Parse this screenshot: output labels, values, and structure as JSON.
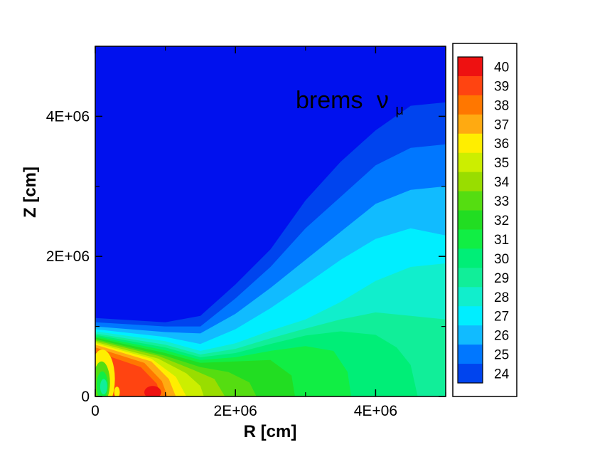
{
  "chart_data": {
    "type": "heatmap",
    "title": "",
    "xlabel": "R [cm]",
    "ylabel": "Z [cm]",
    "xlim": [
      0,
      5000000
    ],
    "ylim": [
      0,
      5000000
    ],
    "x_ticks": [
      {
        "value": 0,
        "label": "0"
      },
      {
        "value": 2000000,
        "label": "2E+06"
      },
      {
        "value": 4000000,
        "label": "4E+06"
      }
    ],
    "y_ticks": [
      {
        "value": 0,
        "label": "0"
      },
      {
        "value": 2000000,
        "label": "2E+06"
      },
      {
        "value": 4000000,
        "label": "4E+06"
      }
    ],
    "annotation": {
      "text": "brems",
      "symbol": "ν",
      "subscript": "μ"
    },
    "legend_position": "right",
    "color_levels": [
      {
        "level": 40,
        "color": "#ee1111"
      },
      {
        "level": 39,
        "color": "#ff4411"
      },
      {
        "level": 38,
        "color": "#ff7700"
      },
      {
        "level": 37,
        "color": "#ffaa11"
      },
      {
        "level": 36,
        "color": "#ffee00"
      },
      {
        "level": 35,
        "color": "#ccee00"
      },
      {
        "level": 34,
        "color": "#99dd00"
      },
      {
        "level": 33,
        "color": "#55dd11"
      },
      {
        "level": 32,
        "color": "#22dd22"
      },
      {
        "level": 31,
        "color": "#11ee44"
      },
      {
        "level": 30,
        "color": "#00ee77"
      },
      {
        "level": 29,
        "color": "#11ee99"
      },
      {
        "level": 28,
        "color": "#11eecc"
      },
      {
        "level": 27,
        "color": "#00eeff"
      },
      {
        "level": 26,
        "color": "#11bbff"
      },
      {
        "level": 25,
        "color": "#0077ff"
      },
      {
        "level": 24,
        "color": "#0044ee"
      }
    ],
    "background_color": "#0011ee",
    "contour_bands": [
      {
        "level": 24,
        "upper_boundary": [
          [
            0,
            1120000
          ],
          [
            1000000,
            1060000
          ],
          [
            1500000,
            1150000
          ],
          [
            2000000,
            1600000
          ],
          [
            2500000,
            2100000
          ],
          [
            3000000,
            2800000
          ],
          [
            3500000,
            3350000
          ],
          [
            4000000,
            3800000
          ],
          [
            4500000,
            4150000
          ],
          [
            5000000,
            4200000
          ]
        ]
      },
      {
        "level": 25,
        "upper_boundary": [
          [
            0,
            1060000
          ],
          [
            1000000,
            1000000
          ],
          [
            1500000,
            1000000
          ],
          [
            2000000,
            1400000
          ],
          [
            2500000,
            1850000
          ],
          [
            3000000,
            2400000
          ],
          [
            3500000,
            2850000
          ],
          [
            4000000,
            3300000
          ],
          [
            4500000,
            3550000
          ],
          [
            5000000,
            3600000
          ]
        ]
      },
      {
        "level": 26,
        "upper_boundary": [
          [
            0,
            1000000
          ],
          [
            1000000,
            920000
          ],
          [
            1500000,
            900000
          ],
          [
            2000000,
            1180000
          ],
          [
            2500000,
            1550000
          ],
          [
            3000000,
            1950000
          ],
          [
            3500000,
            2350000
          ],
          [
            4000000,
            2750000
          ],
          [
            4500000,
            2950000
          ],
          [
            5000000,
            3000000
          ]
        ]
      },
      {
        "level": 27,
        "upper_boundary": [
          [
            0,
            960000
          ],
          [
            1000000,
            850000
          ],
          [
            1500000,
            750000
          ],
          [
            2000000,
            960000
          ],
          [
            2500000,
            1260000
          ],
          [
            3000000,
            1600000
          ],
          [
            3500000,
            1950000
          ],
          [
            4000000,
            2250000
          ],
          [
            4500000,
            2400000
          ],
          [
            5000000,
            2300000
          ]
        ]
      },
      {
        "level": 28,
        "upper_boundary": [
          [
            0,
            930000
          ],
          [
            1000000,
            790000
          ],
          [
            1500000,
            650000
          ],
          [
            2000000,
            760000
          ],
          [
            2500000,
            940000
          ],
          [
            3000000,
            1100000
          ],
          [
            3500000,
            1350000
          ],
          [
            4000000,
            1650000
          ],
          [
            4500000,
            1850000
          ],
          [
            5000000,
            1900000
          ]
        ]
      },
      {
        "level": 29,
        "upper_boundary": [
          [
            0,
            900000
          ],
          [
            1000000,
            740000
          ],
          [
            1500000,
            600000
          ],
          [
            2000000,
            680000
          ],
          [
            2500000,
            830000
          ],
          [
            3000000,
            970000
          ],
          [
            3500000,
            1100000
          ],
          [
            4000000,
            1200000
          ],
          [
            4500000,
            1150000
          ],
          [
            5000000,
            1100000
          ]
        ]
      },
      {
        "level": 30,
        "upper_boundary": [
          [
            0,
            880000
          ],
          [
            1000000,
            700000
          ],
          [
            1500000,
            560000
          ],
          [
            2000000,
            620000
          ],
          [
            2500000,
            750000
          ],
          [
            3000000,
            870000
          ],
          [
            3500000,
            930000
          ],
          [
            4000000,
            880000
          ],
          [
            4300000,
            700000
          ],
          [
            4500000,
            450000
          ],
          [
            4600000,
            0
          ]
        ]
      },
      {
        "level": 31,
        "upper_boundary": [
          [
            0,
            860000
          ],
          [
            1000000,
            660000
          ],
          [
            1500000,
            520000
          ],
          [
            2000000,
            560000
          ],
          [
            2500000,
            650000
          ],
          [
            3000000,
            720000
          ],
          [
            3400000,
            650000
          ],
          [
            3600000,
            350000
          ],
          [
            3650000,
            0
          ]
        ]
      },
      {
        "level": 32,
        "upper_boundary": [
          [
            0,
            840000
          ],
          [
            1000000,
            620000
          ],
          [
            1500000,
            480000
          ],
          [
            2000000,
            500000
          ],
          [
            2500000,
            520000
          ],
          [
            2800000,
            300000
          ],
          [
            2850000,
            0
          ]
        ]
      },
      {
        "level": 33,
        "upper_boundary": [
          [
            0,
            820000
          ],
          [
            1000000,
            580000
          ],
          [
            1500000,
            420000
          ],
          [
            1900000,
            350000
          ],
          [
            2200000,
            200000
          ],
          [
            2300000,
            0
          ]
        ]
      },
      {
        "level": 34,
        "upper_boundary": [
          [
            0,
            800000
          ],
          [
            900000,
            580000
          ],
          [
            1400000,
            380000
          ],
          [
            1700000,
            250000
          ],
          [
            1850000,
            0
          ]
        ]
      },
      {
        "level": 35,
        "upper_boundary": [
          [
            0,
            780000
          ],
          [
            900000,
            540000
          ],
          [
            1300000,
            330000
          ],
          [
            1500000,
            150000
          ],
          [
            1550000,
            0
          ]
        ]
      },
      {
        "level": 36,
        "upper_boundary": [
          [
            0,
            760000
          ],
          [
            800000,
            540000
          ],
          [
            1150000,
            280000
          ],
          [
            1300000,
            0
          ]
        ]
      },
      {
        "level": 37,
        "upper_boundary": [
          [
            0,
            740000
          ],
          [
            800000,
            500000
          ],
          [
            1050000,
            250000
          ],
          [
            1150000,
            0
          ]
        ]
      },
      {
        "level": 38,
        "upper_boundary": [
          [
            0,
            700000
          ],
          [
            700000,
            480000
          ],
          [
            950000,
            220000
          ],
          [
            1030000,
            0
          ]
        ]
      },
      {
        "level": 39,
        "upper_boundary": [
          [
            0,
            640000
          ],
          [
            650000,
            420000
          ],
          [
            880000,
            180000
          ],
          [
            930000,
            0
          ]
        ]
      }
    ],
    "inner_features": [
      {
        "level": 40,
        "center": [
          820000,
          60000
        ],
        "radii": [
          120000,
          90000
        ]
      },
      {
        "level": 36,
        "center": [
          100000,
          250000
        ],
        "radii": [
          180000,
          420000
        ]
      },
      {
        "level": 33,
        "center": [
          90000,
          200000
        ],
        "radii": [
          120000,
          300000
        ]
      },
      {
        "level": 31,
        "center": [
          100000,
          160000
        ],
        "radii": [
          80000,
          200000
        ]
      },
      {
        "level": 29,
        "center": [
          120000,
          140000
        ],
        "radii": [
          50000,
          110000
        ]
      },
      {
        "level": 36,
        "center": [
          310000,
          60000
        ],
        "radii": [
          40000,
          80000
        ]
      }
    ]
  }
}
